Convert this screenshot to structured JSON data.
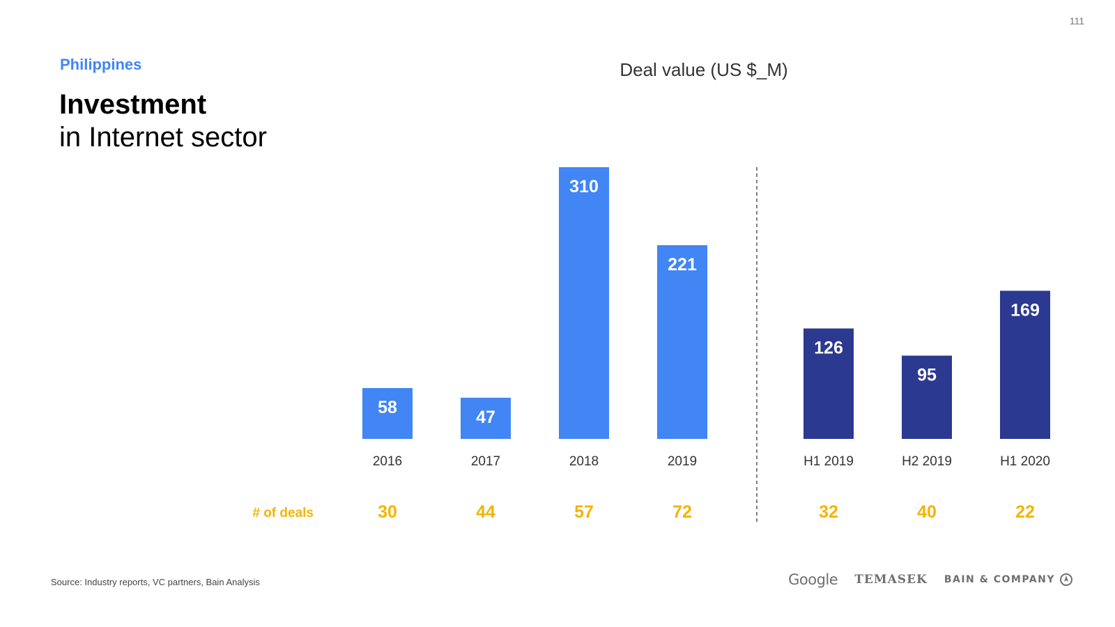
{
  "page_number": "111",
  "header": {
    "region": "Philippines",
    "title_bold": "Investment",
    "title_light": "in Internet sector"
  },
  "chart_data": {
    "type": "bar",
    "title": "Deal value (US $_M)",
    "categories": [
      "2016",
      "2017",
      "2018",
      "2019",
      "H1 2019",
      "H2 2019",
      "H1 2020"
    ],
    "values": [
      58,
      47,
      310,
      221,
      126,
      95,
      169
    ],
    "deals_label": "# of deals",
    "deals": [
      30,
      44,
      57,
      72,
      32,
      40,
      22
    ],
    "ylim": [
      0,
      310
    ],
    "grid": false,
    "groups": [
      {
        "categories": [
          "2016",
          "2017",
          "2018",
          "2019"
        ],
        "color": "#4285F4"
      },
      {
        "categories": [
          "H1 2019",
          "H2 2019",
          "H1 2020"
        ],
        "color": "#2B3990"
      }
    ],
    "deals_color": "#F4B400",
    "divider": "dashed line between 2019 and H1 2019"
  },
  "footer": {
    "source": "Source: Industry reports, VC partners, Bain Analysis",
    "logos": {
      "google": "Google",
      "temasek": "TEMASEK",
      "bain": "BAIN & COMPANY"
    }
  }
}
